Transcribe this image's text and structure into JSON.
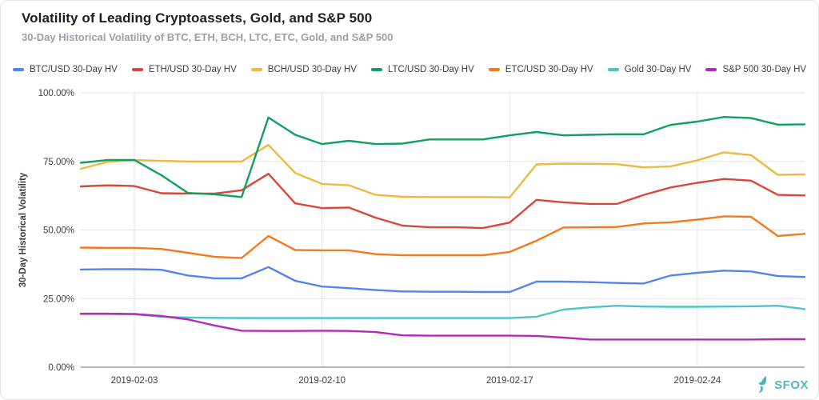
{
  "header": {
    "title": "Volatility of Leading Cryptoassets, Gold, and S&P 500",
    "subtitle": "30-Day Historical Volatility of BTC, ETH, BCH, LTC, ETC, Gold, and S&P 500"
  },
  "footer": {
    "brand": "SFOX",
    "brand_color": "#55b7ba"
  },
  "colors": {
    "background": "#ffffff",
    "grid": "#e4e4e4",
    "axis_line": "#b5b5b5",
    "tick_text": "#3f3f3f",
    "axis_title_text": "#3c4043",
    "title_text": "#1f1f1f",
    "subtitle_text": "#9aa0a6",
    "legend_text": "#3c4043"
  },
  "chart_data": {
    "type": "line",
    "title": "Volatility of Leading Cryptoassets, Gold, and S&P 500",
    "subtitle": "30-Day Historical Volatility of BTC, ETH, BCH, LTC, ETC, Gold, and S&P 500",
    "xlabel": "",
    "ylabel": "30-Day Historical Volatility",
    "ylim": [
      0,
      100
    ],
    "grid": true,
    "legend_position": "top",
    "y_ticks": [
      {
        "value": 0,
        "label": "0.00%"
      },
      {
        "value": 25,
        "label": "25.00%"
      },
      {
        "value": 50,
        "label": "50.00%"
      },
      {
        "value": 75,
        "label": "75.00%"
      },
      {
        "value": 100,
        "label": "100.00%"
      }
    ],
    "x": [
      "2019-02-01",
      "2019-02-02",
      "2019-02-03",
      "2019-02-04",
      "2019-02-05",
      "2019-02-06",
      "2019-02-07",
      "2019-02-08",
      "2019-02-09",
      "2019-02-10",
      "2019-02-11",
      "2019-02-12",
      "2019-02-13",
      "2019-02-14",
      "2019-02-15",
      "2019-02-16",
      "2019-02-17",
      "2019-02-18",
      "2019-02-19",
      "2019-02-20",
      "2019-02-21",
      "2019-02-22",
      "2019-02-23",
      "2019-02-24",
      "2019-02-25",
      "2019-02-26",
      "2019-02-27",
      "2019-02-28"
    ],
    "x_tick_indices": [
      2,
      9,
      16,
      23
    ],
    "x_tick_labels": [
      "2019-02-03",
      "2019-02-10",
      "2019-02-17",
      "2019-02-24"
    ],
    "series": [
      {
        "name": "BTC/USD 30-Day HV",
        "color": "#5584f0",
        "values": [
          35.6,
          35.7,
          35.7,
          35.5,
          33.4,
          32.4,
          32.4,
          36.5,
          31.5,
          29.4,
          28.8,
          28.1,
          27.6,
          27.5,
          27.5,
          27.4,
          27.4,
          31.2,
          31.2,
          31.0,
          30.7,
          30.5,
          33.4,
          34.4,
          35.2,
          34.9,
          33.2,
          32.9
        ]
      },
      {
        "name": "ETH/USD 30-Day HV",
        "color": "#db463b",
        "values": [
          65.9,
          66.3,
          66.0,
          63.4,
          63.3,
          63.3,
          64.5,
          70.5,
          59.7,
          58.0,
          58.2,
          54.5,
          51.6,
          51.0,
          51.0,
          50.7,
          52.7,
          61.0,
          60.1,
          59.5,
          59.5,
          62.8,
          65.5,
          67.2,
          68.6,
          68.0,
          62.8,
          62.6
        ]
      },
      {
        "name": "BCH/USD 30-Day HV",
        "color": "#f0b83d",
        "values": [
          72.3,
          74.8,
          75.5,
          75.2,
          75.0,
          75.0,
          75.0,
          81.0,
          70.8,
          66.8,
          66.3,
          62.8,
          62.1,
          62.0,
          62.0,
          62.0,
          61.9,
          73.9,
          74.2,
          74.1,
          74.0,
          72.8,
          73.2,
          75.4,
          78.3,
          77.3,
          70.1,
          70.3
        ]
      },
      {
        "name": "LTC/USD 30-Day HV",
        "color": "#12a05f",
        "values": [
          74.5,
          75.5,
          75.5,
          70.0,
          63.5,
          63.0,
          62.0,
          91.0,
          84.7,
          81.3,
          82.5,
          81.3,
          81.5,
          83.0,
          83.0,
          83.0,
          84.5,
          85.7,
          84.5,
          84.7,
          84.9,
          84.9,
          88.3,
          89.5,
          91.2,
          90.8,
          88.4,
          88.5
        ]
      },
      {
        "name": "ETC/USD 30-Day HV",
        "color": "#f5791d",
        "values": [
          43.6,
          43.5,
          43.5,
          43.1,
          41.7,
          40.2,
          39.8,
          47.8,
          42.7,
          42.6,
          42.6,
          41.2,
          40.8,
          40.8,
          40.8,
          40.8,
          42.0,
          46.1,
          50.9,
          51.0,
          51.1,
          52.4,
          52.8,
          53.8,
          55.0,
          54.8,
          47.8,
          48.6
        ]
      },
      {
        "name": "Gold 30-Day HV",
        "color": "#4fc3c7",
        "values": [
          19.4,
          19.4,
          19.3,
          18.4,
          18.1,
          18.0,
          17.9,
          17.9,
          17.9,
          17.9,
          17.9,
          17.9,
          17.9,
          17.9,
          17.9,
          17.9,
          17.9,
          18.4,
          21.0,
          21.8,
          22.4,
          22.1,
          22.0,
          22.0,
          22.1,
          22.2,
          22.4,
          21.2
        ]
      },
      {
        "name": "S&P 500 30-Day HV",
        "color": "#b52bb5",
        "values": [
          19.5,
          19.5,
          19.4,
          18.7,
          17.4,
          15.2,
          13.3,
          13.2,
          13.2,
          13.3,
          13.2,
          12.8,
          11.6,
          11.5,
          11.5,
          11.5,
          11.5,
          11.4,
          10.8,
          10.1,
          10.1,
          10.1,
          10.1,
          10.1,
          10.1,
          10.1,
          10.2,
          10.2
        ]
      }
    ]
  }
}
